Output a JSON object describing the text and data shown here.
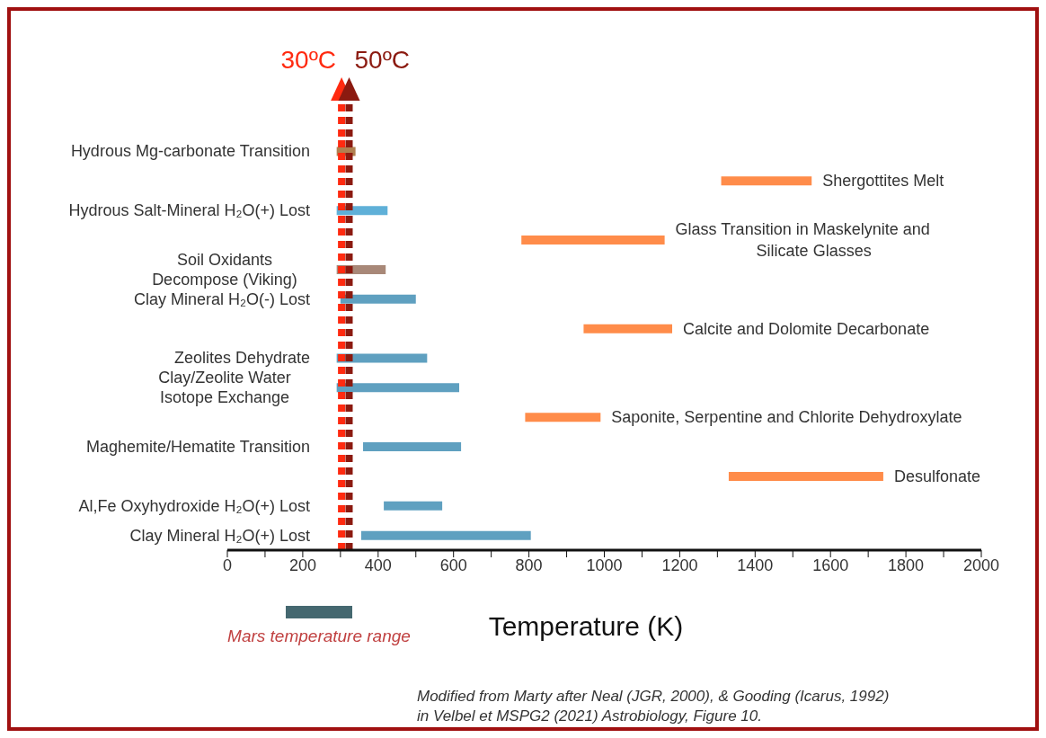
{
  "chart_data": {
    "type": "bar",
    "orientation": "horizontal",
    "xlabel": "Temperature (K)",
    "categories": [
      "Hydrous Mg-carbonate Transition",
      null,
      "Hydrous Salt-Mineral H₂O(+) Lost",
      null,
      "Soil Oxidants\nDecompose (Viking)",
      "Clay Mineral H₂O(-) Lost",
      null,
      "Zeolites Dehydrate",
      "Clay/Zeolite Water\nIsotope Exchange",
      null,
      "Maghemite/Hematite Transition",
      null,
      "Al,Fe Oxyhydroxide H₂O(+) Lost",
      "Clay Mineral H₂O(+) Lost"
    ],
    "base": [
      290,
      1310,
      290,
      780,
      290,
      300,
      945,
      290,
      290,
      790,
      360,
      1330,
      415,
      355
    ],
    "values": [
      50,
      240,
      135,
      380,
      130,
      200,
      235,
      240,
      325,
      200,
      260,
      410,
      155,
      450
    ],
    "colors": [
      "#b08050",
      "#ff8c4a",
      "#5fb0d8",
      "#ff8c4a",
      "#a88878",
      "#5fa0c0",
      "#ff8c4a",
      "#5fa0c0",
      "#5fa0c0",
      "#ff8c4a",
      "#5fa0c0",
      "#ff8c4a",
      "#5fa0c0",
      "#5fa0c0"
    ],
    "value_labels": [
      null,
      "Shergottites Melt",
      null,
      "Glass Transition in Maskelynite and\nSilicate Glasses",
      null,
      null,
      "Calcite and Dolomite Decarbonate",
      null,
      null,
      "Saponite, Serpentine and Chlorite Dehydroxylate",
      null,
      "Desulfonate",
      null,
      null
    ],
    "xlim": [
      0,
      2000
    ],
    "xticks": [
      0,
      {
        "value": 100,
        "label": null
      },
      200,
      {
        "value": 300,
        "label": null
      },
      400,
      {
        "value": 500,
        "label": null
      },
      600,
      {
        "value": 700,
        "label": null
      },
      800,
      {
        "value": 900,
        "label": null
      },
      1000,
      {
        "value": 1100,
        "label": null
      },
      1200,
      {
        "value": 1300,
        "label": null
      },
      1400,
      {
        "value": 1500,
        "label": null
      },
      1600,
      {
        "value": 1700,
        "label": null
      },
      1800,
      {
        "value": 1900,
        "label": null
      },
      2000
    ],
    "ref_lines": [
      {
        "axis": "x",
        "value": 303,
        "label": "30ºC",
        "color": "#ff2a10",
        "line_style": "dotted"
      },
      {
        "axis": "x",
        "value": 323,
        "label": "50ºC",
        "color": "#8b1a10",
        "line_style": "dotted"
      }
    ],
    "annotations": [
      "Mars temperature range",
      "Modified from Marty after Neal (JGR, 2000), & Gooding (Icarus, 1992)\nin Velbel et MSPG2 (2021) Astrobiology, Figure 10."
    ],
    "grid": false
  }
}
